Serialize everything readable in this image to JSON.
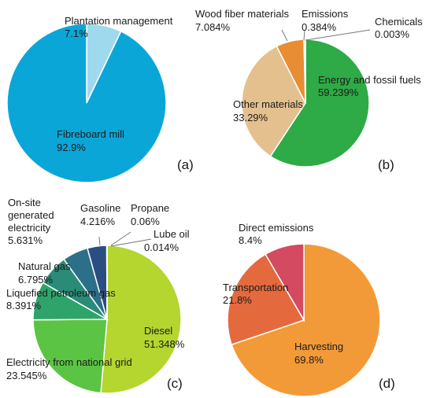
{
  "chart_data": [
    {
      "type": "pie",
      "panel": "(a)",
      "slices": [
        {
          "label": "Plantation management",
          "value": 7.1,
          "value_text": "7.1%",
          "color": "#9fd9ee"
        },
        {
          "label": "Fibreboard mill",
          "value": 92.9,
          "value_text": "92.9%",
          "color": "#0ba6d8"
        }
      ]
    },
    {
      "type": "pie",
      "panel": "(b)",
      "slices": [
        {
          "label": "Energy and fossil fuels",
          "value": 59.239,
          "value_text": "59.239%",
          "color": "#2eaa46"
        },
        {
          "label": "Other materials",
          "value": 33.29,
          "value_text": "33.29%",
          "color": "#e4c08e"
        },
        {
          "label": "Wood fiber materials",
          "value": 7.084,
          "value_text": "7.084%",
          "color": "#e88d33"
        },
        {
          "label": "Emissions",
          "value": 0.384,
          "value_text": "0.384%",
          "color": "#c45a2a"
        },
        {
          "label": "Chemicals",
          "value": 0.003,
          "value_text": "0.003%",
          "color": "#999999"
        }
      ]
    },
    {
      "type": "pie",
      "panel": "(c)",
      "slices": [
        {
          "label": "Diesel",
          "value": 51.348,
          "value_text": "51.348%",
          "color": "#b4d62e"
        },
        {
          "label": "Electricity from national grid",
          "value": 23.545,
          "value_text": "23.545%",
          "color": "#5cc444"
        },
        {
          "label": "Liquefied petroleum gas",
          "value": 8.391,
          "value_text": "8.391%",
          "color": "#2ea46a"
        },
        {
          "label": "Natural gas",
          "value": 6.795,
          "value_text": "6.795%",
          "color": "#2a8b78"
        },
        {
          "label": "On-site generated electricity",
          "value": 5.631,
          "value_text": "5.631%",
          "color": "#2b6f88"
        },
        {
          "label": "Gasoline",
          "value": 4.216,
          "value_text": "4.216%",
          "color": "#2a4e82"
        },
        {
          "label": "Propane",
          "value": 0.06,
          "value_text": "0.06%",
          "color": "#2a3a70"
        },
        {
          "label": "Lube oil",
          "value": 0.014,
          "value_text": "0.014%",
          "color": "#333333"
        }
      ]
    },
    {
      "type": "pie",
      "panel": "(d)",
      "slices": [
        {
          "label": "Harvesting",
          "value": 69.8,
          "value_text": "69.8%",
          "color": "#f39a38"
        },
        {
          "label": "Transportation",
          "value": 21.8,
          "value_text": "21.8%",
          "color": "#e46a3e"
        },
        {
          "label": "Direct emissions",
          "value": 8.4,
          "value_text": "8.4%",
          "color": "#d44a60"
        }
      ]
    }
  ]
}
